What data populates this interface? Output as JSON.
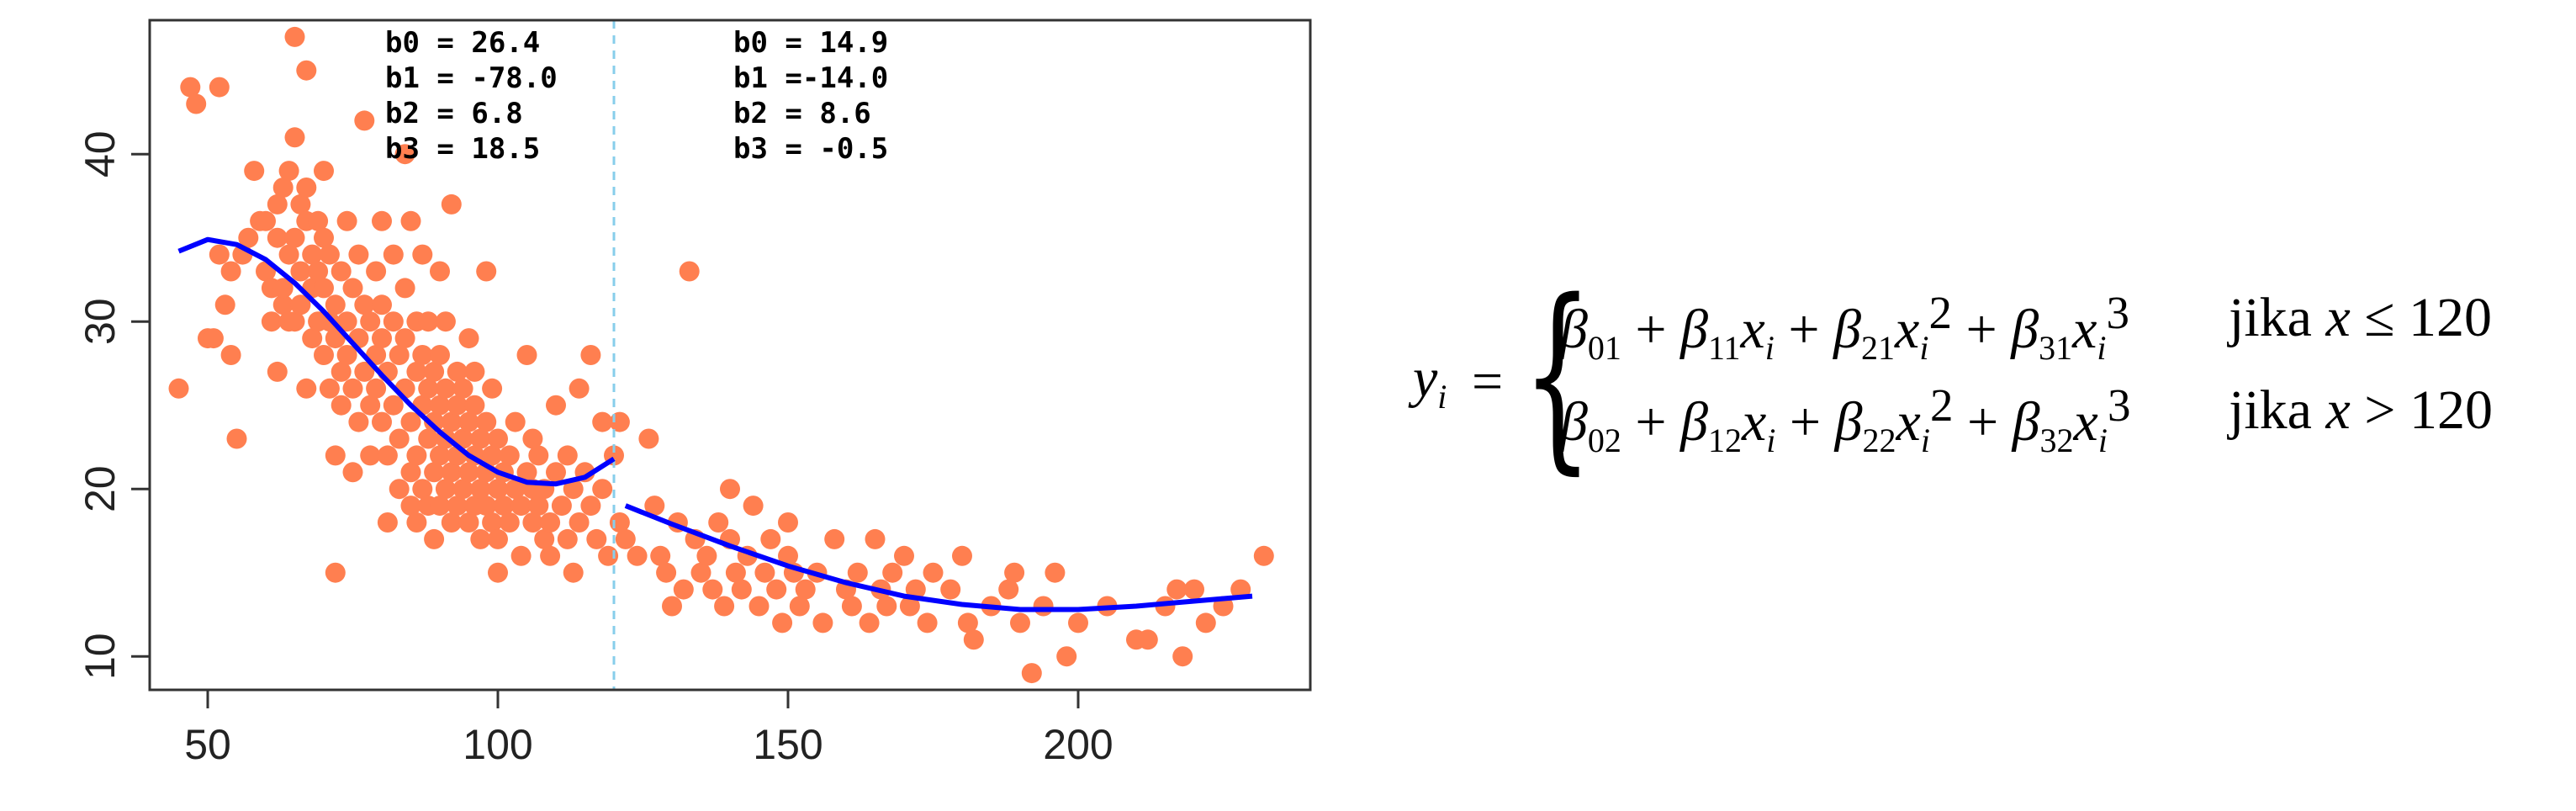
{
  "chart_data": {
    "type": "scatter",
    "title": "",
    "xlabel": "",
    "ylabel": "",
    "xlim": [
      40,
      240
    ],
    "ylim": [
      8,
      48
    ],
    "x_ticks": [
      50,
      100,
      150,
      200
    ],
    "y_ticks": [
      10,
      20,
      30,
      40
    ],
    "grid": false,
    "knot": 120,
    "point_color": "#FF7F50",
    "curve_color": "#0000FF",
    "knot_line_color": "#87CEEB",
    "points": [
      [
        45,
        26
      ],
      [
        47,
        44
      ],
      [
        48,
        43
      ],
      [
        50,
        29
      ],
      [
        51,
        29
      ],
      [
        52,
        44
      ],
      [
        52,
        34
      ],
      [
        53,
        31
      ],
      [
        54,
        33
      ],
      [
        54,
        28
      ],
      [
        55,
        23
      ],
      [
        56,
        34
      ],
      [
        57,
        35
      ],
      [
        58,
        39
      ],
      [
        59,
        36
      ],
      [
        60,
        33
      ],
      [
        60,
        36
      ],
      [
        61,
        32
      ],
      [
        61,
        30
      ],
      [
        62,
        37
      ],
      [
        62,
        35
      ],
      [
        62,
        27
      ],
      [
        63,
        38
      ],
      [
        63,
        31
      ],
      [
        63,
        32
      ],
      [
        64,
        34
      ],
      [
        64,
        30
      ],
      [
        64,
        39
      ],
      [
        65,
        47
      ],
      [
        65,
        35
      ],
      [
        65,
        30
      ],
      [
        65,
        41
      ],
      [
        66,
        33
      ],
      [
        66,
        31
      ],
      [
        66,
        37
      ],
      [
        67,
        36
      ],
      [
        67,
        38
      ],
      [
        67,
        45
      ],
      [
        67,
        26
      ],
      [
        68,
        34
      ],
      [
        68,
        29
      ],
      [
        68,
        32
      ],
      [
        69,
        36
      ],
      [
        69,
        33
      ],
      [
        69,
        30
      ],
      [
        70,
        32
      ],
      [
        70,
        35
      ],
      [
        70,
        28
      ],
      [
        70,
        39
      ],
      [
        71,
        34
      ],
      [
        71,
        30
      ],
      [
        71,
        26
      ],
      [
        72,
        29
      ],
      [
        72,
        31
      ],
      [
        72,
        22
      ],
      [
        72,
        15
      ],
      [
        73,
        33
      ],
      [
        73,
        27
      ],
      [
        73,
        25
      ],
      [
        74,
        30
      ],
      [
        74,
        36
      ],
      [
        74,
        28
      ],
      [
        75,
        32
      ],
      [
        75,
        26
      ],
      [
        75,
        21
      ],
      [
        76,
        34
      ],
      [
        76,
        29
      ],
      [
        76,
        24
      ],
      [
        77,
        31
      ],
      [
        77,
        27
      ],
      [
        77,
        42
      ],
      [
        78,
        30
      ],
      [
        78,
        25
      ],
      [
        78,
        22
      ],
      [
        79,
        28
      ],
      [
        79,
        33
      ],
      [
        79,
        26
      ],
      [
        80,
        29
      ],
      [
        80,
        24
      ],
      [
        80,
        36
      ],
      [
        80,
        31
      ],
      [
        81,
        27
      ],
      [
        81,
        22
      ],
      [
        81,
        18
      ],
      [
        82,
        30
      ],
      [
        82,
        25
      ],
      [
        82,
        34
      ],
      [
        83,
        28
      ],
      [
        83,
        23
      ],
      [
        83,
        20
      ],
      [
        84,
        26
      ],
      [
        84,
        32
      ],
      [
        84,
        29
      ],
      [
        84,
        40
      ],
      [
        85,
        24
      ],
      [
        85,
        21
      ],
      [
        85,
        19
      ],
      [
        85,
        36
      ],
      [
        86,
        27
      ],
      [
        86,
        30
      ],
      [
        86,
        22
      ],
      [
        86,
        18
      ],
      [
        87,
        25
      ],
      [
        87,
        28
      ],
      [
        87,
        20
      ],
      [
        87,
        34
      ],
      [
        88,
        26
      ],
      [
        88,
        23
      ],
      [
        88,
        19
      ],
      [
        88,
        30
      ],
      [
        89,
        24
      ],
      [
        89,
        27
      ],
      [
        89,
        21
      ],
      [
        89,
        17
      ],
      [
        90,
        25
      ],
      [
        90,
        22
      ],
      [
        90,
        28
      ],
      [
        90,
        19
      ],
      [
        90,
        33
      ],
      [
        91,
        26
      ],
      [
        91,
        23
      ],
      [
        91,
        20
      ],
      [
        91,
        30
      ],
      [
        92,
        24
      ],
      [
        92,
        21
      ],
      [
        92,
        18
      ],
      [
        92,
        37
      ],
      [
        93,
        27
      ],
      [
        93,
        25
      ],
      [
        93,
        22
      ],
      [
        93,
        19
      ],
      [
        94,
        23
      ],
      [
        94,
        26
      ],
      [
        94,
        20
      ],
      [
        95,
        24
      ],
      [
        95,
        21
      ],
      [
        95,
        18
      ],
      [
        95,
        29
      ],
      [
        96,
        22
      ],
      [
        96,
        25
      ],
      [
        96,
        19
      ],
      [
        96,
        27
      ],
      [
        97,
        23
      ],
      [
        97,
        20
      ],
      [
        97,
        17
      ],
      [
        98,
        21
      ],
      [
        98,
        24
      ],
      [
        98,
        19
      ],
      [
        98,
        33
      ],
      [
        99,
        22
      ],
      [
        99,
        18
      ],
      [
        99,
        26
      ],
      [
        100,
        20
      ],
      [
        100,
        23
      ],
      [
        100,
        17
      ],
      [
        100,
        15
      ],
      [
        101,
        21
      ],
      [
        101,
        19
      ],
      [
        102,
        22
      ],
      [
        102,
        18
      ],
      [
        103,
        20
      ],
      [
        103,
        24
      ],
      [
        104,
        19
      ],
      [
        104,
        16
      ],
      [
        105,
        21
      ],
      [
        105,
        28
      ],
      [
        106,
        20
      ],
      [
        106,
        23
      ],
      [
        106,
        18
      ],
      [
        107,
        19
      ],
      [
        107,
        22
      ],
      [
        108,
        17
      ],
      [
        108,
        20
      ],
      [
        109,
        18
      ],
      [
        109,
        16
      ],
      [
        110,
        21
      ],
      [
        110,
        25
      ],
      [
        111,
        19
      ],
      [
        112,
        17
      ],
      [
        112,
        22
      ],
      [
        113,
        20
      ],
      [
        113,
        15
      ],
      [
        114,
        18
      ],
      [
        114,
        26
      ],
      [
        115,
        21
      ],
      [
        116,
        19
      ],
      [
        116,
        28
      ],
      [
        117,
        17
      ],
      [
        118,
        24
      ],
      [
        118,
        20
      ],
      [
        119,
        16
      ],
      [
        120,
        22
      ],
      [
        121,
        24
      ],
      [
        121,
        18
      ],
      [
        122,
        17
      ],
      [
        124,
        16
      ],
      [
        126,
        23
      ],
      [
        127,
        19
      ],
      [
        128,
        16
      ],
      [
        129,
        15
      ],
      [
        130,
        13
      ],
      [
        131,
        18
      ],
      [
        132,
        14
      ],
      [
        133,
        33
      ],
      [
        134,
        17
      ],
      [
        135,
        15
      ],
      [
        136,
        16
      ],
      [
        137,
        14
      ],
      [
        138,
        18
      ],
      [
        139,
        13
      ],
      [
        140,
        20
      ],
      [
        140,
        17
      ],
      [
        141,
        15
      ],
      [
        142,
        14
      ],
      [
        143,
        16
      ],
      [
        144,
        19
      ],
      [
        145,
        13
      ],
      [
        146,
        15
      ],
      [
        147,
        17
      ],
      [
        148,
        14
      ],
      [
        149,
        12
      ],
      [
        150,
        16
      ],
      [
        150,
        18
      ],
      [
        151,
        15
      ],
      [
        152,
        13
      ],
      [
        153,
        14
      ],
      [
        155,
        15
      ],
      [
        156,
        12
      ],
      [
        158,
        17
      ],
      [
        160,
        14
      ],
      [
        161,
        13
      ],
      [
        162,
        15
      ],
      [
        164,
        12
      ],
      [
        165,
        17
      ],
      [
        166,
        14
      ],
      [
        167,
        13
      ],
      [
        168,
        15
      ],
      [
        170,
        16
      ],
      [
        171,
        13
      ],
      [
        172,
        14
      ],
      [
        174,
        12
      ],
      [
        175,
        15
      ],
      [
        178,
        14
      ],
      [
        180,
        16
      ],
      [
        181,
        12
      ],
      [
        182,
        11
      ],
      [
        185,
        13
      ],
      [
        188,
        14
      ],
      [
        189,
        15
      ],
      [
        190,
        12
      ],
      [
        192,
        9
      ],
      [
        194,
        13
      ],
      [
        196,
        15
      ],
      [
        198,
        10
      ],
      [
        200,
        12
      ],
      [
        205,
        13
      ],
      [
        210,
        11
      ],
      [
        212,
        11
      ],
      [
        215,
        13
      ],
      [
        217,
        14
      ],
      [
        218,
        10
      ],
      [
        220,
        14
      ],
      [
        222,
        12
      ],
      [
        225,
        13
      ],
      [
        228,
        14
      ],
      [
        232,
        16
      ]
    ],
    "segments": [
      {
        "x_range": [
          45,
          120
        ],
        "b0": 26.4,
        "b1": -78.0,
        "b2": 6.8,
        "b3": 18.5,
        "curve": [
          [
            45,
            34.2
          ],
          [
            50,
            34.9
          ],
          [
            55,
            34.6
          ],
          [
            60,
            33.7
          ],
          [
            65,
            32.3
          ],
          [
            70,
            30.6
          ],
          [
            75,
            28.7
          ],
          [
            80,
            26.8
          ],
          [
            85,
            25.0
          ],
          [
            90,
            23.4
          ],
          [
            95,
            22.0
          ],
          [
            100,
            21.0
          ],
          [
            105,
            20.4
          ],
          [
            110,
            20.3
          ],
          [
            115,
            20.7
          ],
          [
            120,
            21.8
          ]
        ]
      },
      {
        "x_range": [
          122,
          232
        ],
        "b0": 14.9,
        "b1": -14.0,
        "b2": 8.6,
        "b3": -0.5,
        "curve": [
          [
            122,
            19.0
          ],
          [
            130,
            17.9
          ],
          [
            140,
            16.6
          ],
          [
            150,
            15.4
          ],
          [
            160,
            14.4
          ],
          [
            170,
            13.6
          ],
          [
            180,
            13.1
          ],
          [
            190,
            12.8
          ],
          [
            200,
            12.8
          ],
          [
            210,
            13.0
          ],
          [
            220,
            13.3
          ],
          [
            230,
            13.6
          ]
        ]
      }
    ],
    "annotations": {
      "left": [
        "b0 = 26.4",
        "b1 = -78.0",
        "b2 = 6.8",
        "b3 = 18.5"
      ],
      "right": [
        "b0 = 14.9",
        "b1 =-14.0",
        "b2 = 8.6",
        "b3 = -0.5"
      ]
    }
  },
  "formula": {
    "lhs": "y",
    "lhs_sub": "i",
    "eq": "=",
    "row1": {
      "b0": "β",
      "b0_sub": "01",
      "b1": "β",
      "b1_sub": "11",
      "b2": "β",
      "b2_sub": "21",
      "b3": "β",
      "b3_sub": "31"
    },
    "row2": {
      "b0": "β",
      "b0_sub": "02",
      "b1": "β",
      "b1_sub": "12",
      "b2": "β",
      "b2_sub": "22",
      "b3": "β",
      "b3_sub": "32"
    },
    "cond1_word": "jika",
    "cond1_var": "x",
    "cond1_op": "≤",
    "cond1_val": "120",
    "cond2_word": "jika",
    "cond2_var": "x",
    "cond2_op": ">",
    "cond2_val": "120"
  }
}
